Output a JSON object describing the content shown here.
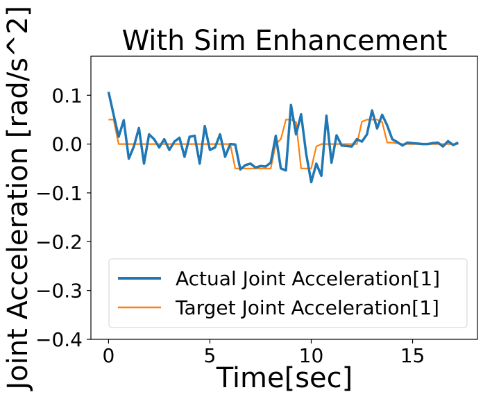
{
  "chart_data": {
    "type": "line",
    "title": "With Sim Enhancement",
    "xlabel": "Time[sec]",
    "ylabel": "Joint Acceleration [rad/s^2]",
    "xlim": [
      -0.87,
      18.2
    ],
    "ylim": [
      -0.4,
      0.18
    ],
    "xticks": [
      0,
      5,
      10,
      15
    ],
    "xtick_labels": [
      "0",
      "5",
      "10",
      "15"
    ],
    "yticks": [
      0.1,
      0.0,
      -0.1,
      -0.2,
      -0.3,
      -0.4
    ],
    "ytick_labels": [
      "0.1",
      "0.0",
      "−0.1",
      "−0.2",
      "−0.3",
      "−0.4"
    ],
    "grid": false,
    "legend_position": "lower-right",
    "series": [
      {
        "name": "Actual Joint Acceleration[1]",
        "color": "#1f77b4",
        "x": [
          0.0,
          0.25,
          0.5,
          0.75,
          1.0,
          1.25,
          1.5,
          1.75,
          2.0,
          2.25,
          2.5,
          2.75,
          3.0,
          3.25,
          3.5,
          3.75,
          4.0,
          4.25,
          4.5,
          4.75,
          5.0,
          5.25,
          5.5,
          5.75,
          6.0,
          6.25,
          6.5,
          6.75,
          7.0,
          7.25,
          7.5,
          7.75,
          8.0,
          8.25,
          8.5,
          8.75,
          9.0,
          9.25,
          9.5,
          9.75,
          10.0,
          10.25,
          10.5,
          10.75,
          11.0,
          11.25,
          11.5,
          11.75,
          12.0,
          12.25,
          12.5,
          12.75,
          13.0,
          13.25,
          13.5,
          13.75,
          14.0,
          14.25,
          14.5,
          14.75,
          15.0,
          15.25,
          15.5,
          15.75,
          16.0,
          16.25,
          16.5,
          16.75,
          17.0,
          17.25
        ],
        "y": [
          0.107,
          0.06,
          0.015,
          0.049,
          -0.03,
          -0.005,
          0.033,
          -0.04,
          0.02,
          0.01,
          -0.007,
          0.01,
          -0.012,
          0.005,
          0.013,
          -0.026,
          0.015,
          0.017,
          -0.04,
          0.037,
          -0.012,
          -0.007,
          0.02,
          -0.026,
          0.0,
          -0.001,
          -0.052,
          -0.043,
          -0.04,
          -0.048,
          -0.045,
          -0.046,
          -0.038,
          0.017,
          -0.05,
          -0.054,
          0.08,
          0.02,
          0.061,
          -0.02,
          -0.078,
          -0.04,
          -0.065,
          0.058,
          -0.038,
          0.018,
          -0.003,
          -0.004,
          -0.005,
          0.01,
          0.005,
          0.02,
          0.069,
          0.032,
          0.06,
          0.038,
          0.01,
          0.004,
          -0.003,
          0.003,
          0.002,
          0.001,
          0.0,
          0.0,
          0.002,
          0.003,
          -0.005,
          0.006,
          -0.002,
          0.003
        ]
      },
      {
        "name": "Target Joint Acceleration[1]",
        "color": "#ff7f0e",
        "x": [
          0.0,
          0.25,
          0.5,
          0.75,
          1.0,
          5.75,
          6.0,
          6.25,
          6.5,
          8.0,
          8.25,
          8.5,
          8.75,
          9.0,
          9.25,
          9.5,
          10.0,
          10.25,
          10.5,
          12.25,
          12.5,
          12.75,
          13.0,
          13.25,
          13.5,
          13.75,
          14.0,
          14.5,
          15.0,
          16.0,
          17.25
        ],
        "y": [
          0.05,
          0.05,
          0.0,
          0.0,
          0.0,
          0.0,
          0.0,
          -0.05,
          -0.05,
          -0.05,
          0.0,
          0.01,
          0.05,
          0.05,
          0.045,
          -0.05,
          -0.05,
          -0.005,
          0.0,
          0.0,
          0.046,
          0.05,
          0.05,
          0.05,
          0.045,
          0.003,
          0.003,
          0.0,
          0.0,
          0.0,
          0.0
        ]
      }
    ]
  }
}
